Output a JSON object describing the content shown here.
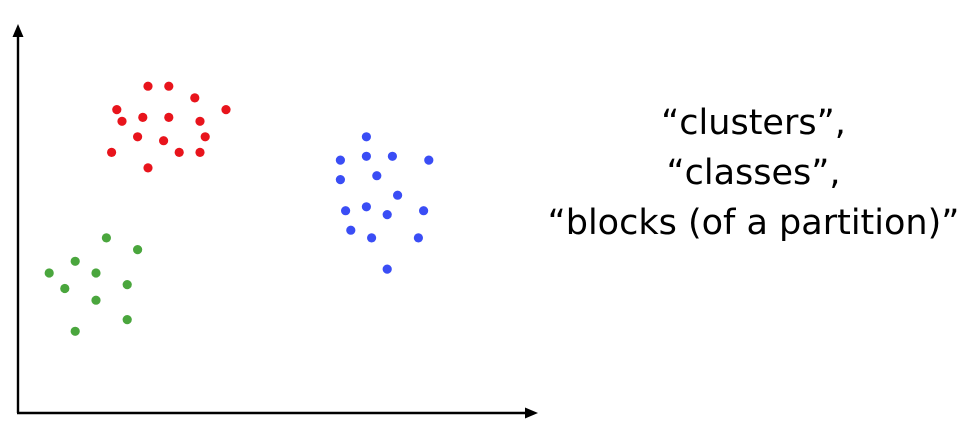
{
  "colors": {
    "axis": "#000000",
    "red": "#e8141c",
    "blue": "#3a4df5",
    "green": "#4aa63d"
  },
  "caption": {
    "line1": "“clusters”,",
    "line2": "“classes”,",
    "line3": "“blocks (of a partition)”"
  },
  "chart_data": {
    "type": "scatter",
    "xlim": [
      0,
      100
    ],
    "ylim": [
      0,
      100
    ],
    "grid": false,
    "legend": "none",
    "series": [
      {
        "color": "#e8141c",
        "points": [
          [
            25,
            84
          ],
          [
            29,
            84
          ],
          [
            34,
            81
          ],
          [
            40,
            78
          ],
          [
            19,
            78
          ],
          [
            20,
            75
          ],
          [
            24,
            76
          ],
          [
            29,
            76
          ],
          [
            35,
            75
          ],
          [
            36,
            71
          ],
          [
            23,
            71
          ],
          [
            28,
            70
          ],
          [
            31,
            67
          ],
          [
            35,
            67
          ],
          [
            18,
            67
          ],
          [
            25,
            63
          ]
        ]
      },
      {
        "color": "#3a4df5",
        "points": [
          [
            67,
            71
          ],
          [
            62,
            65
          ],
          [
            67,
            66
          ],
          [
            72,
            66
          ],
          [
            79,
            65
          ],
          [
            69,
            61
          ],
          [
            62,
            60
          ],
          [
            73,
            56
          ],
          [
            63,
            52
          ],
          [
            67,
            53
          ],
          [
            71,
            51
          ],
          [
            78,
            52
          ],
          [
            64,
            47
          ],
          [
            68,
            45
          ],
          [
            77,
            45
          ],
          [
            71,
            37
          ]
        ]
      },
      {
        "color": "#4aa63d",
        "points": [
          [
            17,
            45
          ],
          [
            23,
            42
          ],
          [
            11,
            39
          ],
          [
            6,
            36
          ],
          [
            15,
            36
          ],
          [
            9,
            32
          ],
          [
            21,
            33
          ],
          [
            15,
            29
          ],
          [
            21,
            24
          ],
          [
            11,
            21
          ]
        ]
      }
    ]
  }
}
